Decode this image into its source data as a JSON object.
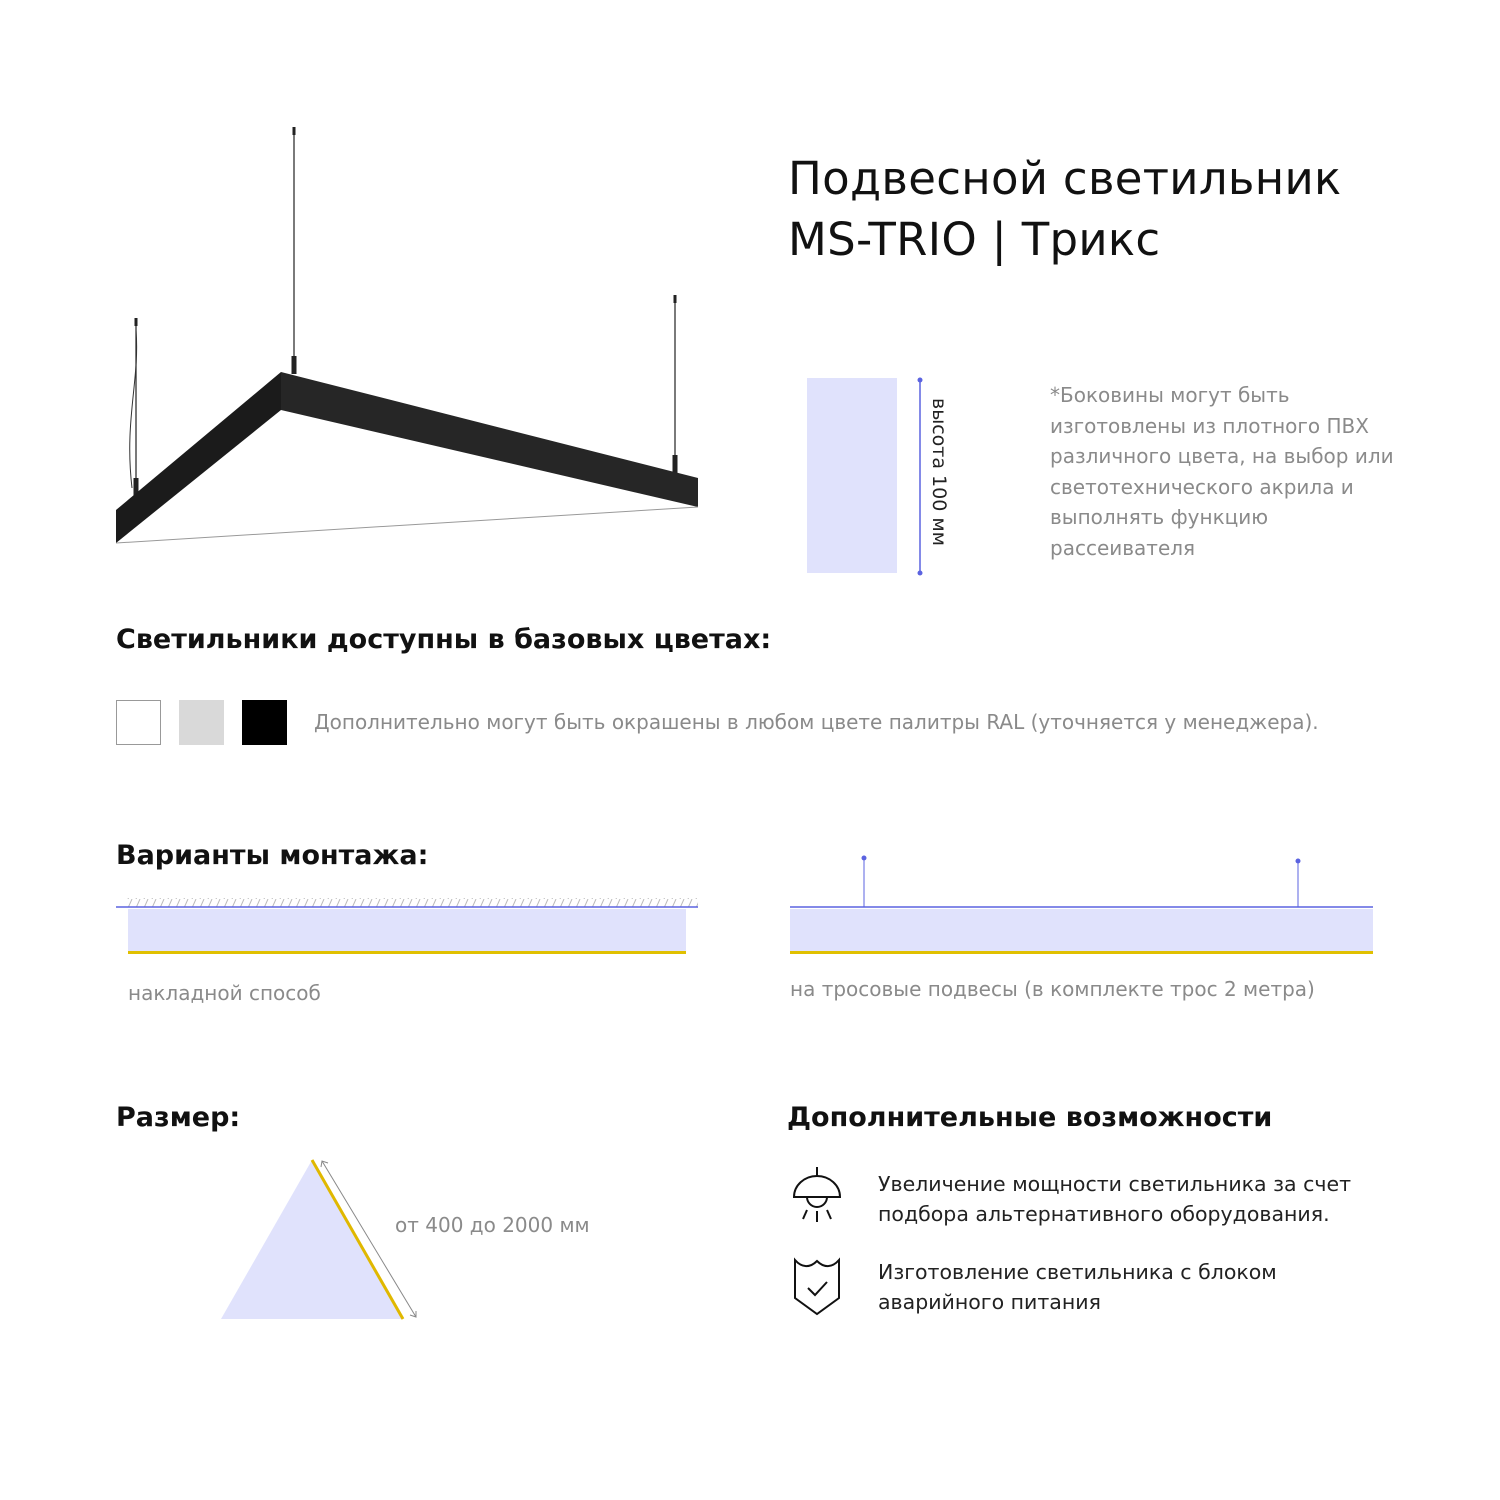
{
  "header": {
    "title_line1": "Подвесной светильник",
    "title_line2": "MS-TRIO | Трикс"
  },
  "height_diagram": {
    "label": "высота 100 мм",
    "fill_color": "#e0e2fc",
    "dimension_color": "#5b63e0"
  },
  "note": "*Боковины могут быть изготовлены из плотного ПВХ различного цвета, на выбор или светотехнического акрила и выполнять функцию рассеивателя",
  "colors_section": {
    "heading": "Светильники доступны в базовых цветах:",
    "swatches": [
      {
        "name": "white",
        "color": "#ffffff"
      },
      {
        "name": "light-gray",
        "color": "#d9d9d9"
      },
      {
        "name": "black",
        "color": "#000000"
      }
    ],
    "note": "Дополнительно могут быть окрашены в любом цвете палитры RAL (уточняется у менеджера)."
  },
  "mounting": {
    "heading": "Варианты монтажа:",
    "options": [
      {
        "label": "накладной способ"
      },
      {
        "label": "на тросовые подвесы (в комплекте трос 2 метра)"
      }
    ],
    "accent_color": "#e0c000"
  },
  "size": {
    "heading": "Размер:",
    "label": "от 400 до 2000 мм"
  },
  "extras": {
    "heading": "Дополнительные возможности",
    "items": [
      {
        "icon": "pendant-lamp-icon",
        "text": "Увеличение мощности светильника за счет подбора альтернативного оборудования."
      },
      {
        "icon": "shield-check-icon",
        "text": "Изготовление светильника с блоком аварийного питания"
      }
    ]
  }
}
